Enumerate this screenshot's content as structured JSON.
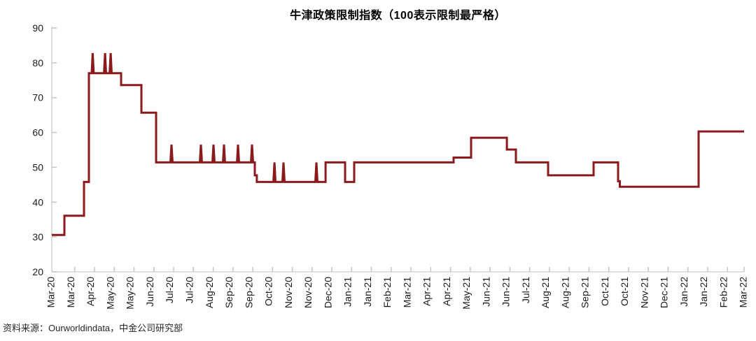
{
  "title": "牛津政策限制指数（100表示限制最严格）",
  "source": "资料来源：Ourworldindata，中金公司研究部",
  "colors": {
    "line": "#8b1a1d",
    "axis": "#d6d6d6",
    "tick": "#c2c2c2",
    "label": "#1a1a1a"
  },
  "chart_data": {
    "type": "line",
    "title": "牛津政策限制指数（100表示限制最严格）",
    "xlabel": "",
    "ylabel": "",
    "ylim": [
      20,
      90
    ],
    "yticks": [
      20,
      30,
      40,
      50,
      60,
      70,
      80,
      90
    ],
    "grid": false,
    "legend": false,
    "x_range_note": "x expressed as fraction 0-1 of axis span Mar-2020 to Mar-2022, step (daily) series",
    "x_tick_labels": [
      "Mar-20",
      "Mar-20",
      "Apr-20",
      "May-20",
      "May-20",
      "Jun-20",
      "Jul-20",
      "Jul-20",
      "Aug-20",
      "Sep-20",
      "Sep-20",
      "Oct-20",
      "Nov-20",
      "Nov-20",
      "Dec-20",
      "Jan-21",
      "Jan-21",
      "Feb-21",
      "Mar-21",
      "Apr-21",
      "Apr-21",
      "May-21",
      "Jun-21",
      "Jun-21",
      "Jul-21",
      "Aug-21",
      "Aug-21",
      "Sep-21",
      "Oct-21",
      "Oct-21",
      "Nov-21",
      "Dec-21",
      "Jan-22",
      "Jan-22",
      "Feb-22",
      "Mar-22"
    ],
    "series": [
      {
        "name": "牛津政策限制指数",
        "color": "#8b1a1d",
        "points": [
          [
            0.0,
            30.6
          ],
          [
            0.0182,
            30.6
          ],
          [
            0.0182,
            36.1
          ],
          [
            0.0465,
            36.1
          ],
          [
            0.0465,
            45.8
          ],
          [
            0.0536,
            45.8
          ],
          [
            0.0536,
            77.0
          ],
          [
            0.0576,
            77.0
          ],
          [
            0.0591,
            82.8
          ],
          [
            0.0606,
            77.0
          ],
          [
            0.0754,
            77.0
          ],
          [
            0.0769,
            82.8
          ],
          [
            0.0784,
            77.0
          ],
          [
            0.0835,
            77.0
          ],
          [
            0.085,
            82.8
          ],
          [
            0.0865,
            77.0
          ],
          [
            0.1001,
            77.0
          ],
          [
            0.1001,
            73.6
          ],
          [
            0.1294,
            73.6
          ],
          [
            0.1294,
            65.7
          ],
          [
            0.1507,
            65.7
          ],
          [
            0.1507,
            51.4
          ],
          [
            0.1714,
            51.4
          ],
          [
            0.1729,
            56.5
          ],
          [
            0.1744,
            51.4
          ],
          [
            0.2139,
            51.4
          ],
          [
            0.2154,
            56.5
          ],
          [
            0.2169,
            51.4
          ],
          [
            0.2321,
            51.4
          ],
          [
            0.2336,
            56.5
          ],
          [
            0.2351,
            51.4
          ],
          [
            0.2472,
            51.4
          ],
          [
            0.2487,
            56.5
          ],
          [
            0.2502,
            51.4
          ],
          [
            0.2675,
            51.4
          ],
          [
            0.269,
            56.5
          ],
          [
            0.2705,
            51.4
          ],
          [
            0.2877,
            51.4
          ],
          [
            0.2892,
            56.5
          ],
          [
            0.2907,
            51.4
          ],
          [
            0.2932,
            51.4
          ],
          [
            0.2932,
            47.7
          ],
          [
            0.2962,
            47.7
          ],
          [
            0.2962,
            45.8
          ],
          [
            0.3201,
            45.8
          ],
          [
            0.3216,
            51.4
          ],
          [
            0.3231,
            45.8
          ],
          [
            0.3332,
            45.8
          ],
          [
            0.3347,
            51.4
          ],
          [
            0.3362,
            45.8
          ],
          [
            0.3807,
            45.8
          ],
          [
            0.3822,
            51.4
          ],
          [
            0.3837,
            45.8
          ],
          [
            0.3954,
            45.8
          ],
          [
            0.3954,
            51.4
          ],
          [
            0.4237,
            51.4
          ],
          [
            0.4237,
            45.8
          ],
          [
            0.4368,
            45.8
          ],
          [
            0.4368,
            51.4
          ],
          [
            0.5804,
            51.4
          ],
          [
            0.5804,
            52.8
          ],
          [
            0.6057,
            52.8
          ],
          [
            0.6057,
            58.5
          ],
          [
            0.6573,
            58.5
          ],
          [
            0.6573,
            55.1
          ],
          [
            0.6704,
            55.1
          ],
          [
            0.6704,
            51.4
          ],
          [
            0.7169,
            51.4
          ],
          [
            0.7169,
            47.7
          ],
          [
            0.7826,
            47.7
          ],
          [
            0.7826,
            51.4
          ],
          [
            0.818,
            51.4
          ],
          [
            0.818,
            46.0
          ],
          [
            0.8205,
            46.0
          ],
          [
            0.8205,
            44.4
          ],
          [
            0.9343,
            44.4
          ],
          [
            0.9343,
            60.3
          ],
          [
            1.0,
            60.3
          ]
        ]
      }
    ]
  }
}
